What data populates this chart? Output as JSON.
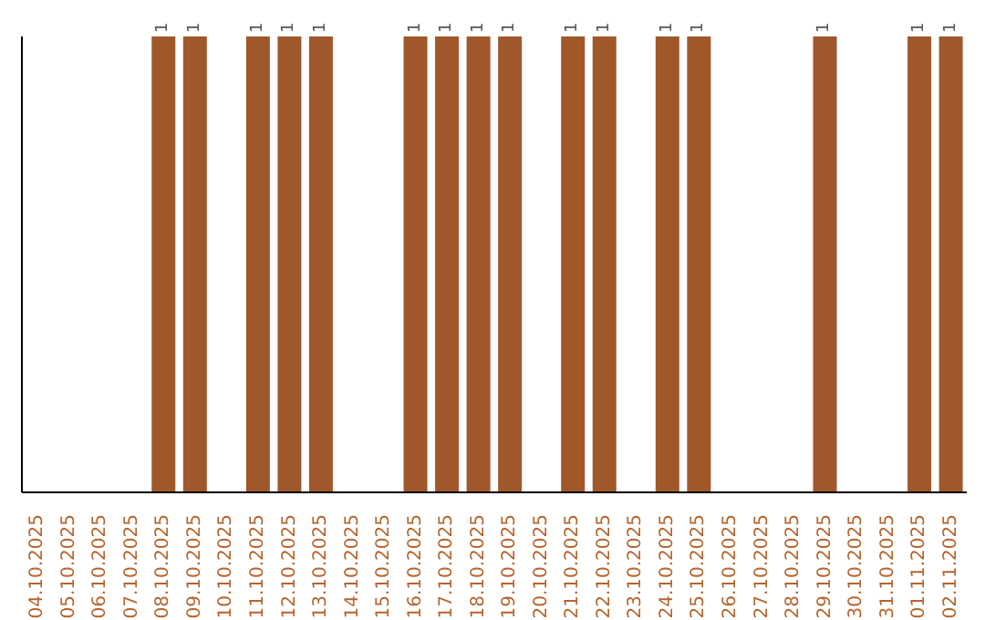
{
  "chart_data": {
    "type": "bar",
    "categories": [
      "04.10.2025",
      "05.10.2025",
      "06.10.2025",
      "07.10.2025",
      "08.10.2025",
      "09.10.2025",
      "10.10.2025",
      "11.10.2025",
      "12.10.2025",
      "13.10.2025",
      "14.10.2025",
      "15.10.2025",
      "16.10.2025",
      "17.10.2025",
      "18.10.2025",
      "19.10.2025",
      "20.10.2025",
      "21.10.2025",
      "22.10.2025",
      "23.10.2025",
      "24.10.2025",
      "25.10.2025",
      "26.10.2025",
      "27.10.2025",
      "28.10.2025",
      "29.10.2025",
      "30.10.2025",
      "31.10.2025",
      "01.11.2025",
      "02.11.2025"
    ],
    "values": [
      0,
      0,
      0,
      0,
      1,
      1,
      0,
      1,
      1,
      1,
      0,
      0,
      1,
      1,
      1,
      1,
      0,
      1,
      1,
      0,
      1,
      1,
      0,
      0,
      0,
      1,
      0,
      0,
      1,
      1
    ],
    "value_labels": [
      null,
      null,
      null,
      null,
      "1",
      "1",
      null,
      "1",
      "1",
      "1",
      null,
      null,
      "1",
      "1",
      "1",
      "1",
      null,
      "1",
      "1",
      null,
      "1",
      "1",
      null,
      null,
      null,
      "1",
      null,
      null,
      "1",
      "1"
    ],
    "color": "#a0582a",
    "grid": false,
    "legend": false
  }
}
